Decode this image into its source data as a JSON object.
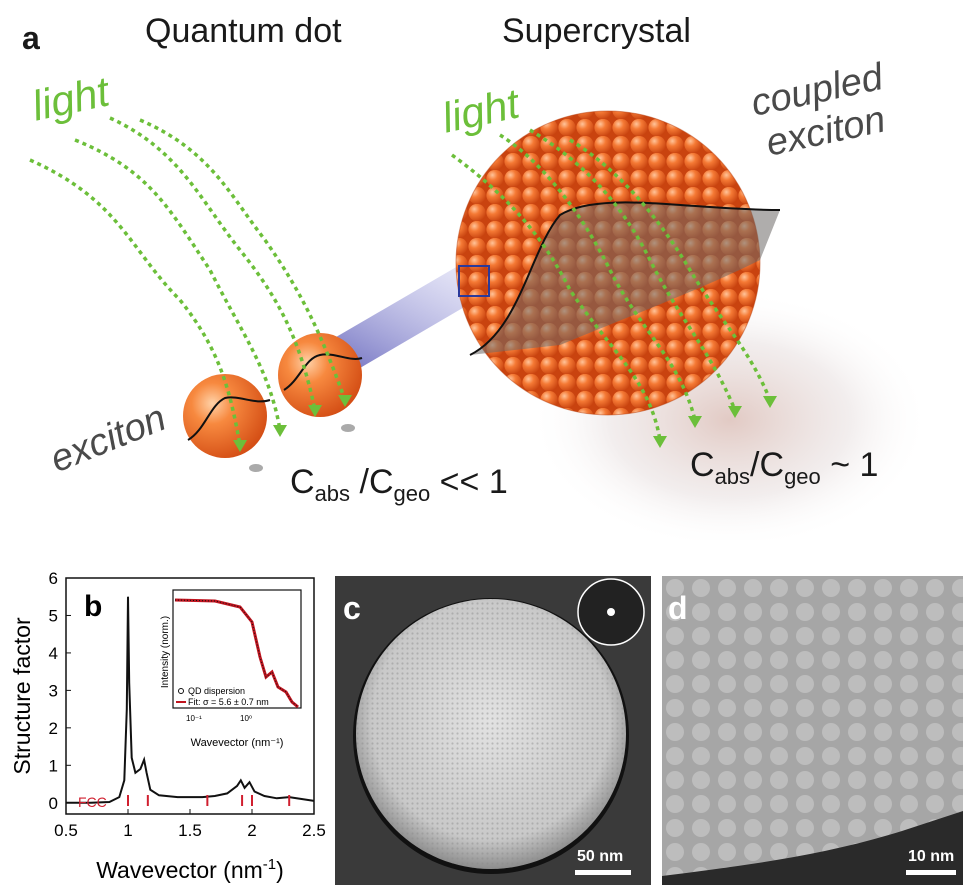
{
  "panel_a": {
    "letter": "a",
    "title_left": "Quantum dot",
    "title_right": "Supercrystal",
    "light_left": "light",
    "light_right": "light",
    "coupled_line1": "coupled",
    "coupled_line2": "exciton",
    "exciton": "exciton",
    "ratio_left": {
      "c1": "C",
      "s1": "abs",
      "sep": " /",
      "c2": "C",
      "s2": "geo",
      "rel": " << 1"
    },
    "ratio_right": {
      "c1": "C",
      "s1": "abs",
      "sep": "/",
      "c2": "C",
      "s2": "geo",
      "rel": " ~ 1"
    },
    "colors": {
      "light": "#6cbf3a",
      "particle": "#f06a2a",
      "outline": "#222222"
    }
  },
  "panel_b": {
    "letter": "b",
    "ylabel": "Structure factor",
    "xlabel_main": "Wavevector (nm",
    "xlabel_exp": "-1",
    "xlabel_end": ")",
    "fcc_label": "FCC",
    "inset": {
      "ylabel": "Intensity (norm.)",
      "xlabel": "Wavevector (nm⁻¹)",
      "legend_points": "QD dispersion",
      "legend_fit": "Fit: σ = 5.6 ± 0.7 nm",
      "xticks": [
        "10⁻¹",
        "10⁰"
      ]
    }
  },
  "chart_data": {
    "type": "line",
    "title": "",
    "xlabel": "Wavevector (nm⁻¹)",
    "ylabel": "Structure factor",
    "xlim": [
      0.5,
      2.5
    ],
    "ylim": [
      -0.3,
      6
    ],
    "xticks": [
      "0.5",
      "1",
      "1.5",
      "2",
      "2.5"
    ],
    "yticks": [
      "0",
      "1",
      "2",
      "3",
      "4",
      "5",
      "6"
    ],
    "x": [
      0.5,
      0.7,
      0.85,
      0.93,
      0.97,
      0.99,
      1.0,
      1.01,
      1.03,
      1.06,
      1.1,
      1.13,
      1.15,
      1.18,
      1.25,
      1.4,
      1.6,
      1.7,
      1.8,
      1.88,
      1.91,
      1.94,
      1.98,
      2.02,
      2.1,
      2.2,
      2.3,
      2.4,
      2.5
    ],
    "y": [
      0.0,
      0.0,
      0.02,
      0.15,
      0.6,
      2.5,
      5.5,
      3.2,
      1.2,
      0.8,
      0.9,
      1.15,
      0.8,
      0.35,
      0.2,
      0.15,
      0.15,
      0.18,
      0.25,
      0.45,
      0.6,
      0.4,
      0.55,
      0.3,
      0.18,
      0.12,
      0.15,
      0.1,
      0.05
    ],
    "fcc_peaks": [
      1.0,
      1.16,
      1.64,
      1.92,
      2.0,
      2.3
    ],
    "grid": false
  },
  "panel_c": {
    "letter": "c",
    "scalebar": "50 nm"
  },
  "panel_d": {
    "letter": "d",
    "scalebar": "10 nm"
  }
}
